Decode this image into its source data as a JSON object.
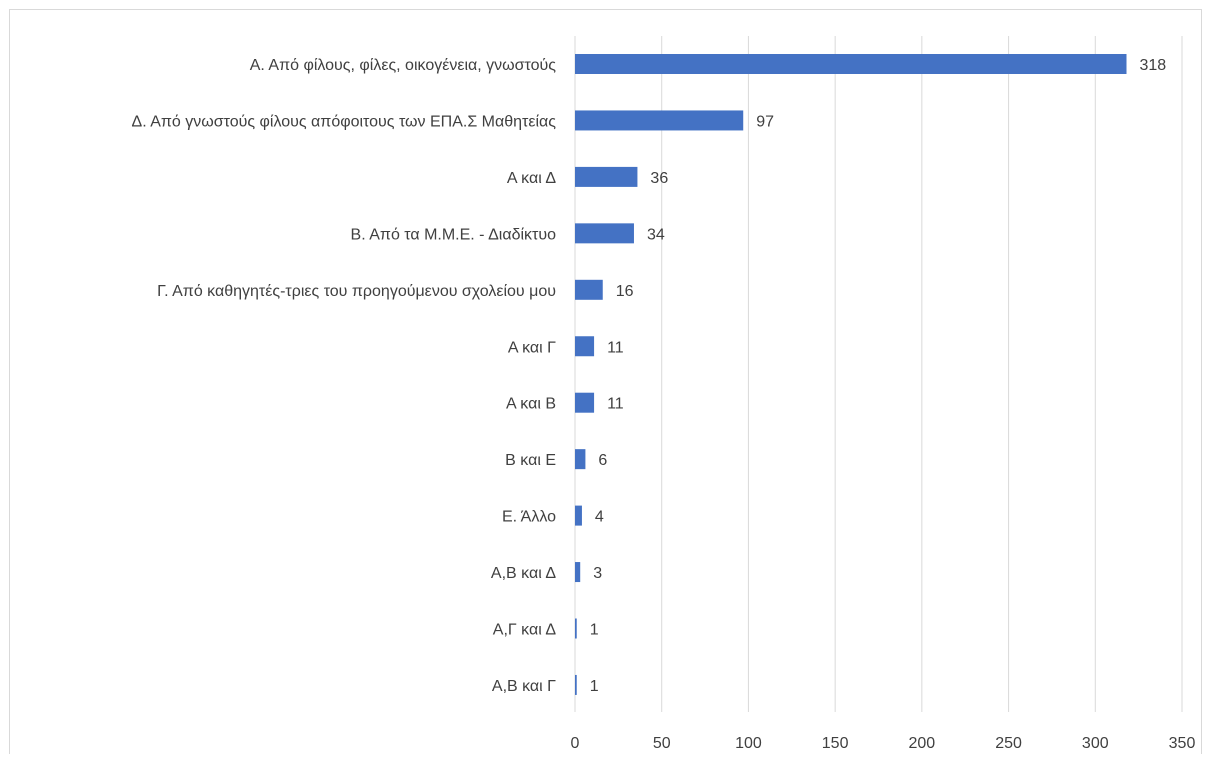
{
  "chart_data": {
    "type": "bar",
    "orientation": "horizontal",
    "title": "",
    "xlabel": "",
    "ylabel": "",
    "categories": [
      "Α. Από φίλους, φίλες, οικογένεια, γνωστούς",
      "Δ. Από γνωστούς φίλους απόφοιτους των ΕΠΑ.Σ Μαθητείας",
      "Α και Δ",
      "Β. Από τα Μ.Μ.Ε. - Διαδίκτυο",
      "Γ. Από καθηγητές-τριες του προηγούμενου σχολείου μου",
      "Α και Γ",
      "Α και Β",
      "Β και Ε",
      "Ε. Άλλο",
      "Α,Β και Δ",
      "Α,Γ και Δ",
      "Α,Β και Γ"
    ],
    "values": [
      318,
      97,
      36,
      34,
      16,
      11,
      11,
      6,
      4,
      3,
      1,
      1
    ],
    "xlim": [
      0,
      350
    ],
    "xticks": [
      "0",
      "50",
      "100",
      "150",
      "200",
      "250",
      "300",
      "350"
    ],
    "gridlines": true,
    "legend": "none",
    "data_labels": true,
    "bar_color": "#4472c4"
  }
}
